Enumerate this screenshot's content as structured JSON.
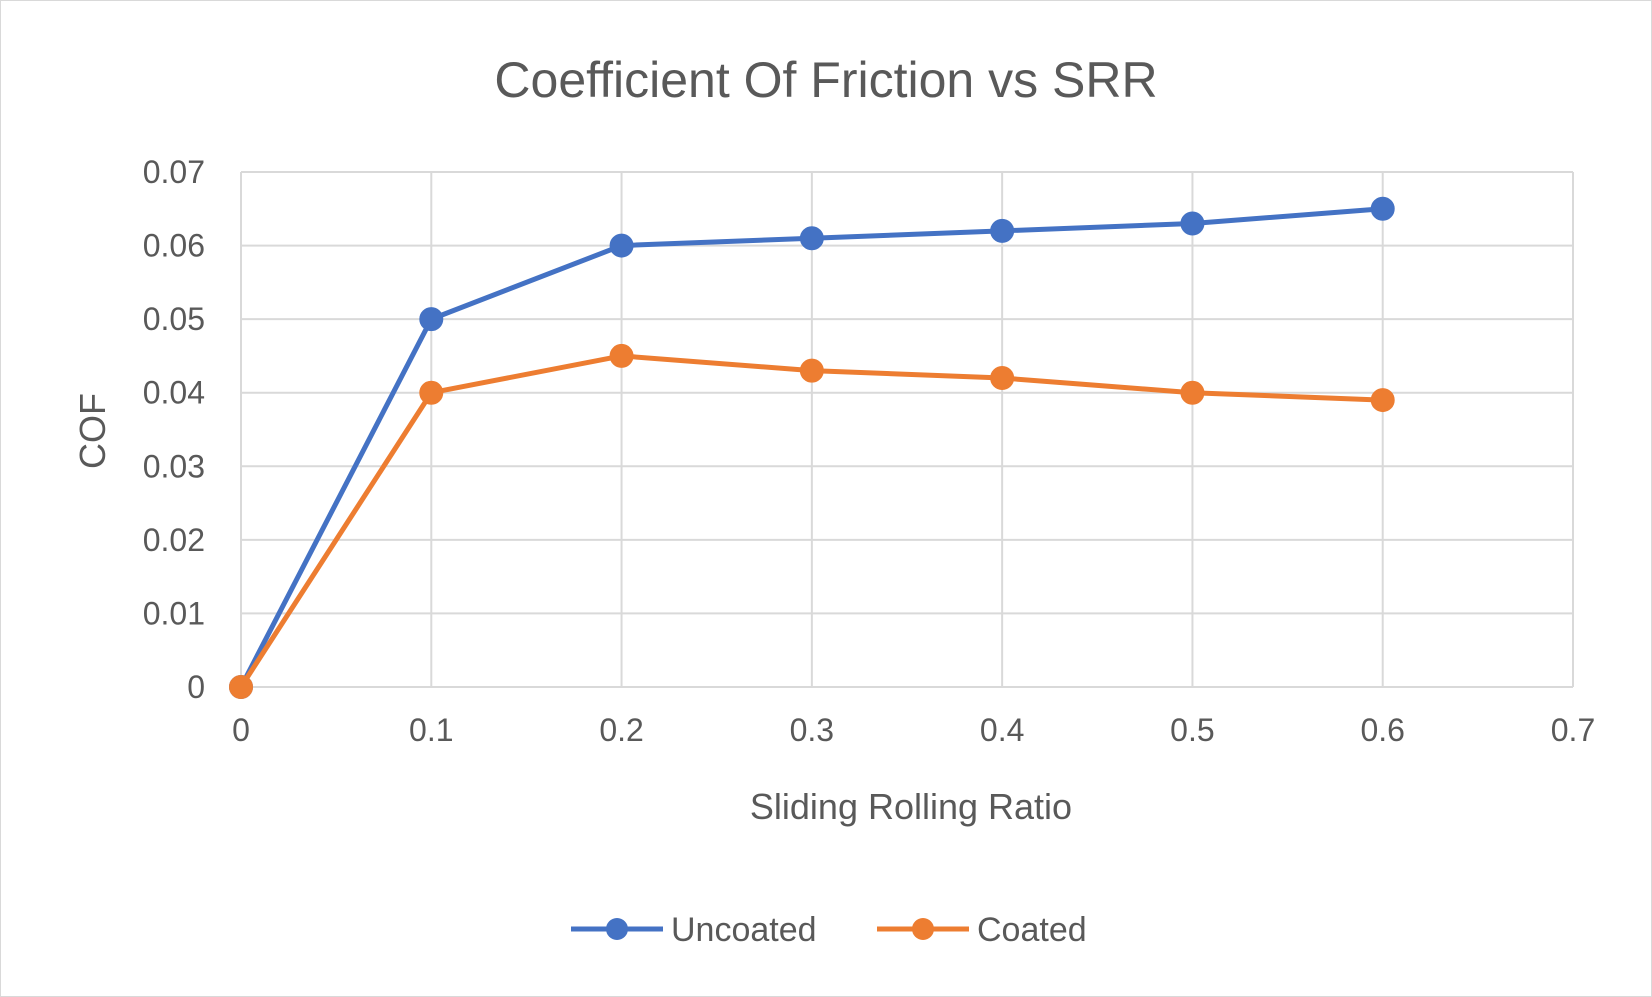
{
  "chart_data": {
    "type": "line",
    "title": "Coefficient Of Friction  vs SRR",
    "xlabel": "Sliding Rolling Ratio",
    "ylabel": "COF",
    "xlim": [
      0,
      0.7
    ],
    "ylim": [
      0,
      0.07
    ],
    "x_ticks": [
      "0",
      "0.1",
      "0.2",
      "0.3",
      "0.4",
      "0.5",
      "0.6",
      "0.7"
    ],
    "y_ticks": [
      "0",
      "0.01",
      "0.02",
      "0.03",
      "0.04",
      "0.05",
      "0.06",
      "0.07"
    ],
    "grid": true,
    "legend_position": "bottom",
    "x": [
      0,
      0.1,
      0.2,
      0.3,
      0.4,
      0.5,
      0.6
    ],
    "series": [
      {
        "name": "Uncoated",
        "color": "#4472c4",
        "values": [
          0,
          0.05,
          0.06,
          0.061,
          0.062,
          0.063,
          0.065
        ]
      },
      {
        "name": "Coated",
        "color": "#ed7d31",
        "values": [
          0,
          0.04,
          0.045,
          0.043,
          0.042,
          0.04,
          0.039
        ]
      }
    ]
  }
}
